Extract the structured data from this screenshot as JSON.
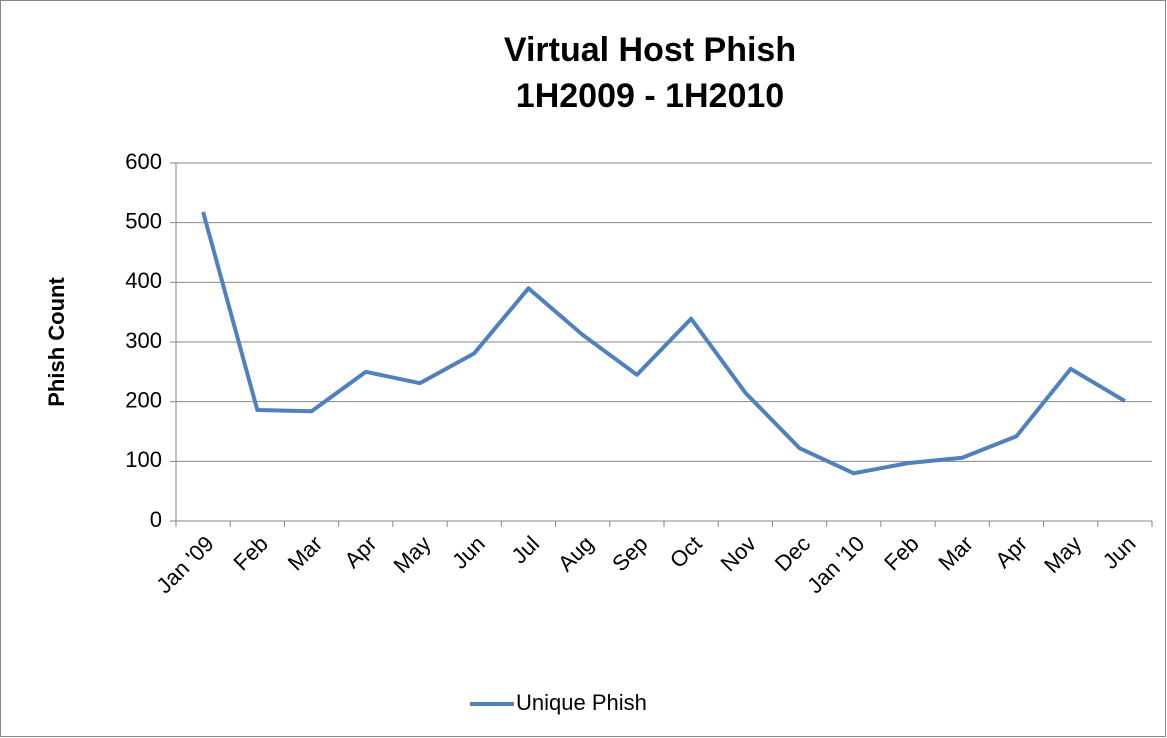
{
  "chart_data": {
    "type": "line",
    "title": [
      "Virtual Host Phish",
      "1H2009 - 1H2010"
    ],
    "y_label": "Phish Count",
    "categories": [
      "Jan '09",
      "Feb",
      "Mar",
      "Apr",
      "May",
      "Jun",
      "Jul",
      "Aug",
      "Sep",
      "Oct",
      "Nov",
      "Dec",
      "Jan '10",
      "Feb",
      "Mar",
      "Apr",
      "May",
      "Jun"
    ],
    "series": [
      {
        "name": "Unique Phish",
        "color": "#4f81bd",
        "values": [
          518,
          186,
          184,
          250,
          231,
          281,
          390,
          312,
          245,
          339,
          215,
          122,
          80,
          97,
          106,
          142,
          255,
          201
        ]
      }
    ],
    "ylim": [
      0,
      600
    ],
    "yticks": [
      0,
      100,
      200,
      300,
      400,
      500,
      600
    ],
    "grid": true,
    "legend": "bottom"
  }
}
